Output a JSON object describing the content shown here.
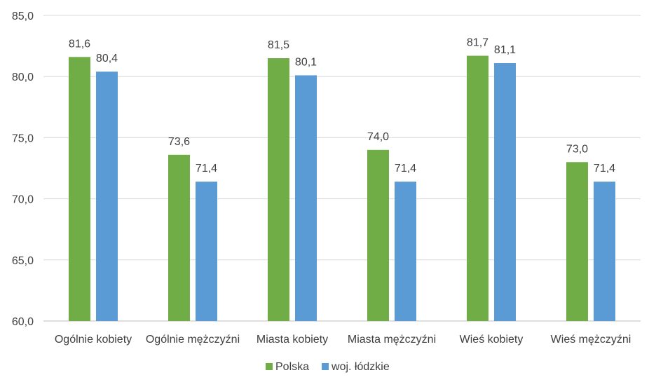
{
  "chart_data": {
    "type": "bar",
    "categories": [
      "Ogólnie kobiety",
      "Ogólnie mężczyźni",
      "Miasta kobiety",
      "Miasta mężczyźni",
      "Wieś kobiety",
      "Wieś mężczyźni"
    ],
    "series": [
      {
        "name": "Polska",
        "color": "#70ad47",
        "values": [
          81.6,
          73.6,
          81.5,
          74.0,
          81.7,
          73.0
        ],
        "labels": [
          "81,6",
          "73,6",
          "81,5",
          "74,0",
          "81,7",
          "73,0"
        ]
      },
      {
        "name": "woj. łódzkie",
        "color": "#5b9bd5",
        "values": [
          80.4,
          71.4,
          80.1,
          71.4,
          81.1,
          71.4
        ],
        "labels": [
          "80,4",
          "71,4",
          "80,1",
          "71,4",
          "81,1",
          "71,4"
        ]
      }
    ],
    "ylim": [
      60,
      85
    ],
    "yticks": [
      60,
      65,
      70,
      75,
      80,
      85
    ],
    "ytick_labels": [
      "60,0",
      "65,0",
      "70,0",
      "75,0",
      "80,0",
      "85,0"
    ],
    "grid": true,
    "legend_position": "bottom",
    "title": "",
    "xlabel": "",
    "ylabel": ""
  }
}
